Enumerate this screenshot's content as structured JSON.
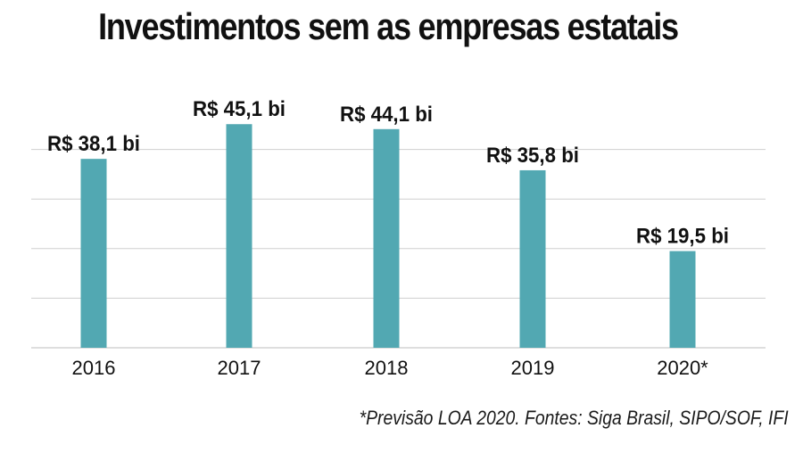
{
  "chart_data": {
    "type": "bar",
    "title": "Investimentos sem as empresas estatais",
    "categories": [
      "2016",
      "2017",
      "2018",
      "2019",
      "2020*"
    ],
    "values": [
      38.1,
      45.1,
      44.1,
      35.8,
      19.5
    ],
    "value_labels": [
      "R$ 38,1 bi",
      "R$ 45,1 bi",
      "R$ 44,1 bi",
      "R$ 35,8 bi",
      "R$ 19,5 bi"
    ],
    "unit": "R$ bi",
    "xlabel": "",
    "ylabel": "",
    "ylim": [
      0,
      50
    ],
    "gridlines": [
      0,
      10,
      20,
      30,
      40
    ],
    "grid": true,
    "legend": "none",
    "footnote": "*Previsão LOA 2020. Fontes: Siga Brasil, SIPO/SOF, IFI"
  },
  "colors": {
    "bar": "#52a8b2",
    "grid": "#cfcfcf",
    "axis": "#bdbdbd",
    "text": "#111111"
  }
}
